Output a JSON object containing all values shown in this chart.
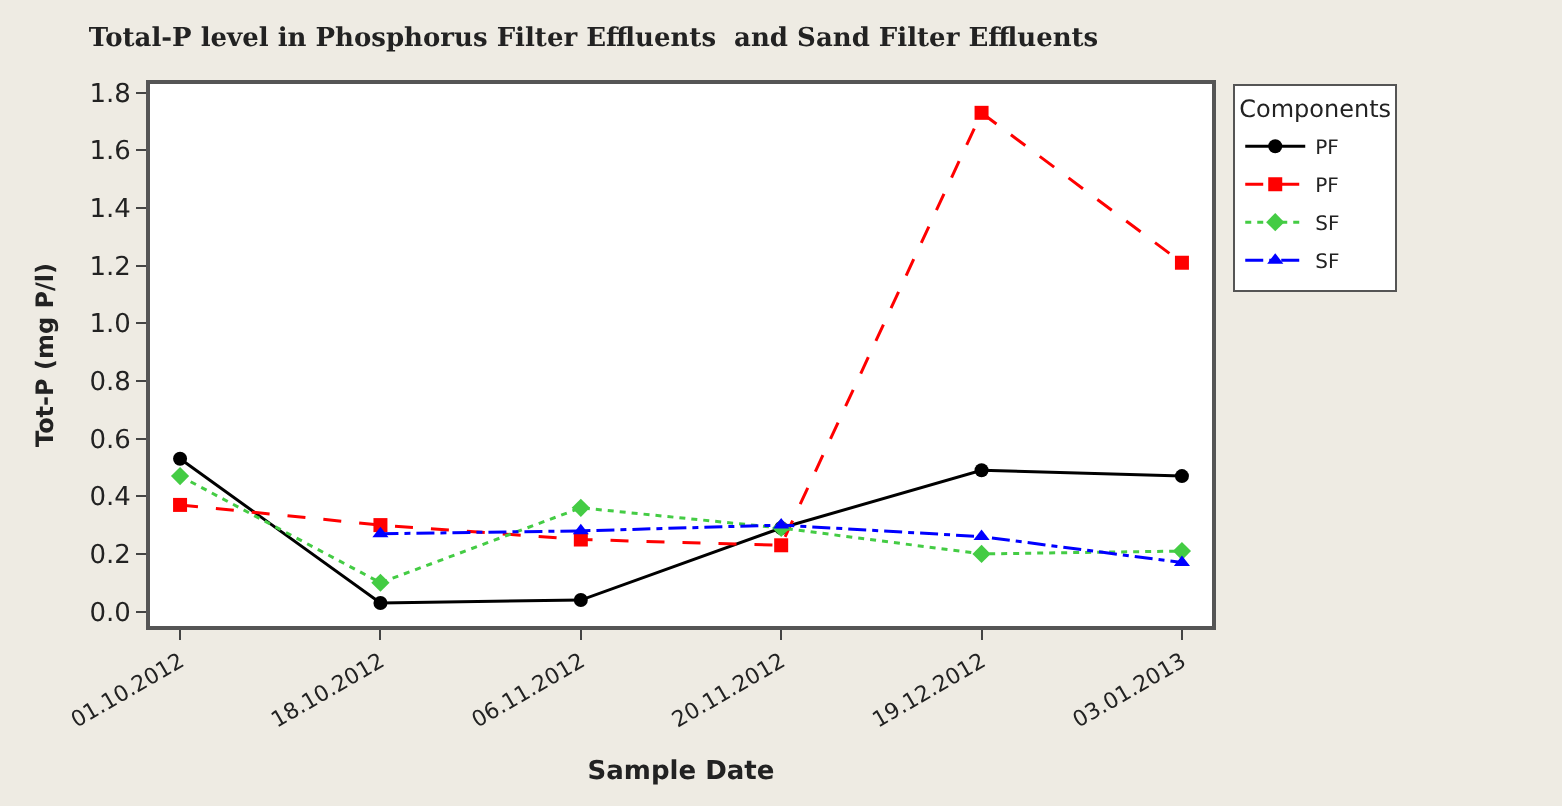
{
  "chart_data": {
    "type": "line",
    "title": "Total-P level in Phosphorus Filter Effluents  and Sand Filter Effluents",
    "xlabel": "Sample Date",
    "ylabel": "Tot-P (mg P/l)",
    "legend_title": "Components",
    "legend": "top right",
    "categories": [
      "01.10.2012",
      "18.10.2012",
      "06.11.2012",
      "20.11.2012",
      "19.12.2012",
      "03.01.2013"
    ],
    "ylim": [
      -0.05,
      1.83
    ],
    "yticks": [
      {
        "value": 0,
        "label": "0.0"
      },
      {
        "value": 0.2,
        "label": "0.2"
      },
      {
        "value": 0.4,
        "label": "0.4"
      },
      {
        "value": 0.6,
        "label": "0.6"
      },
      {
        "value": 0.8,
        "label": "0.8"
      },
      {
        "value": 1.0,
        "label": "1.0"
      },
      {
        "value": 1.2,
        "label": "1.2"
      },
      {
        "value": 1.4,
        "label": "1.4"
      },
      {
        "value": 1.6,
        "label": "1.6"
      },
      {
        "value": 1.8,
        "label": "1.8"
      }
    ],
    "series": [
      {
        "name": "PF",
        "color": "#000000",
        "marker": "circle",
        "line_style": "solid",
        "values": [
          0.53,
          0.03,
          0.04,
          0.29,
          0.49,
          0.47
        ]
      },
      {
        "name": "PF",
        "color": "#ff0000",
        "marker": "square",
        "line_style": "dashed",
        "values": [
          0.37,
          0.3,
          0.25,
          0.23,
          1.73,
          1.21
        ]
      },
      {
        "name": "SF",
        "color": "#44cc44",
        "marker": "diamond",
        "line_style": "dotted",
        "values": [
          0.47,
          0.1,
          0.36,
          0.29,
          0.2,
          0.21
        ]
      },
      {
        "name": "SF",
        "color": "#0000ff",
        "marker": "triangle",
        "line_style": "dashdot",
        "values": [
          null,
          0.27,
          0.28,
          0.3,
          0.26,
          0.17
        ]
      }
    ]
  }
}
